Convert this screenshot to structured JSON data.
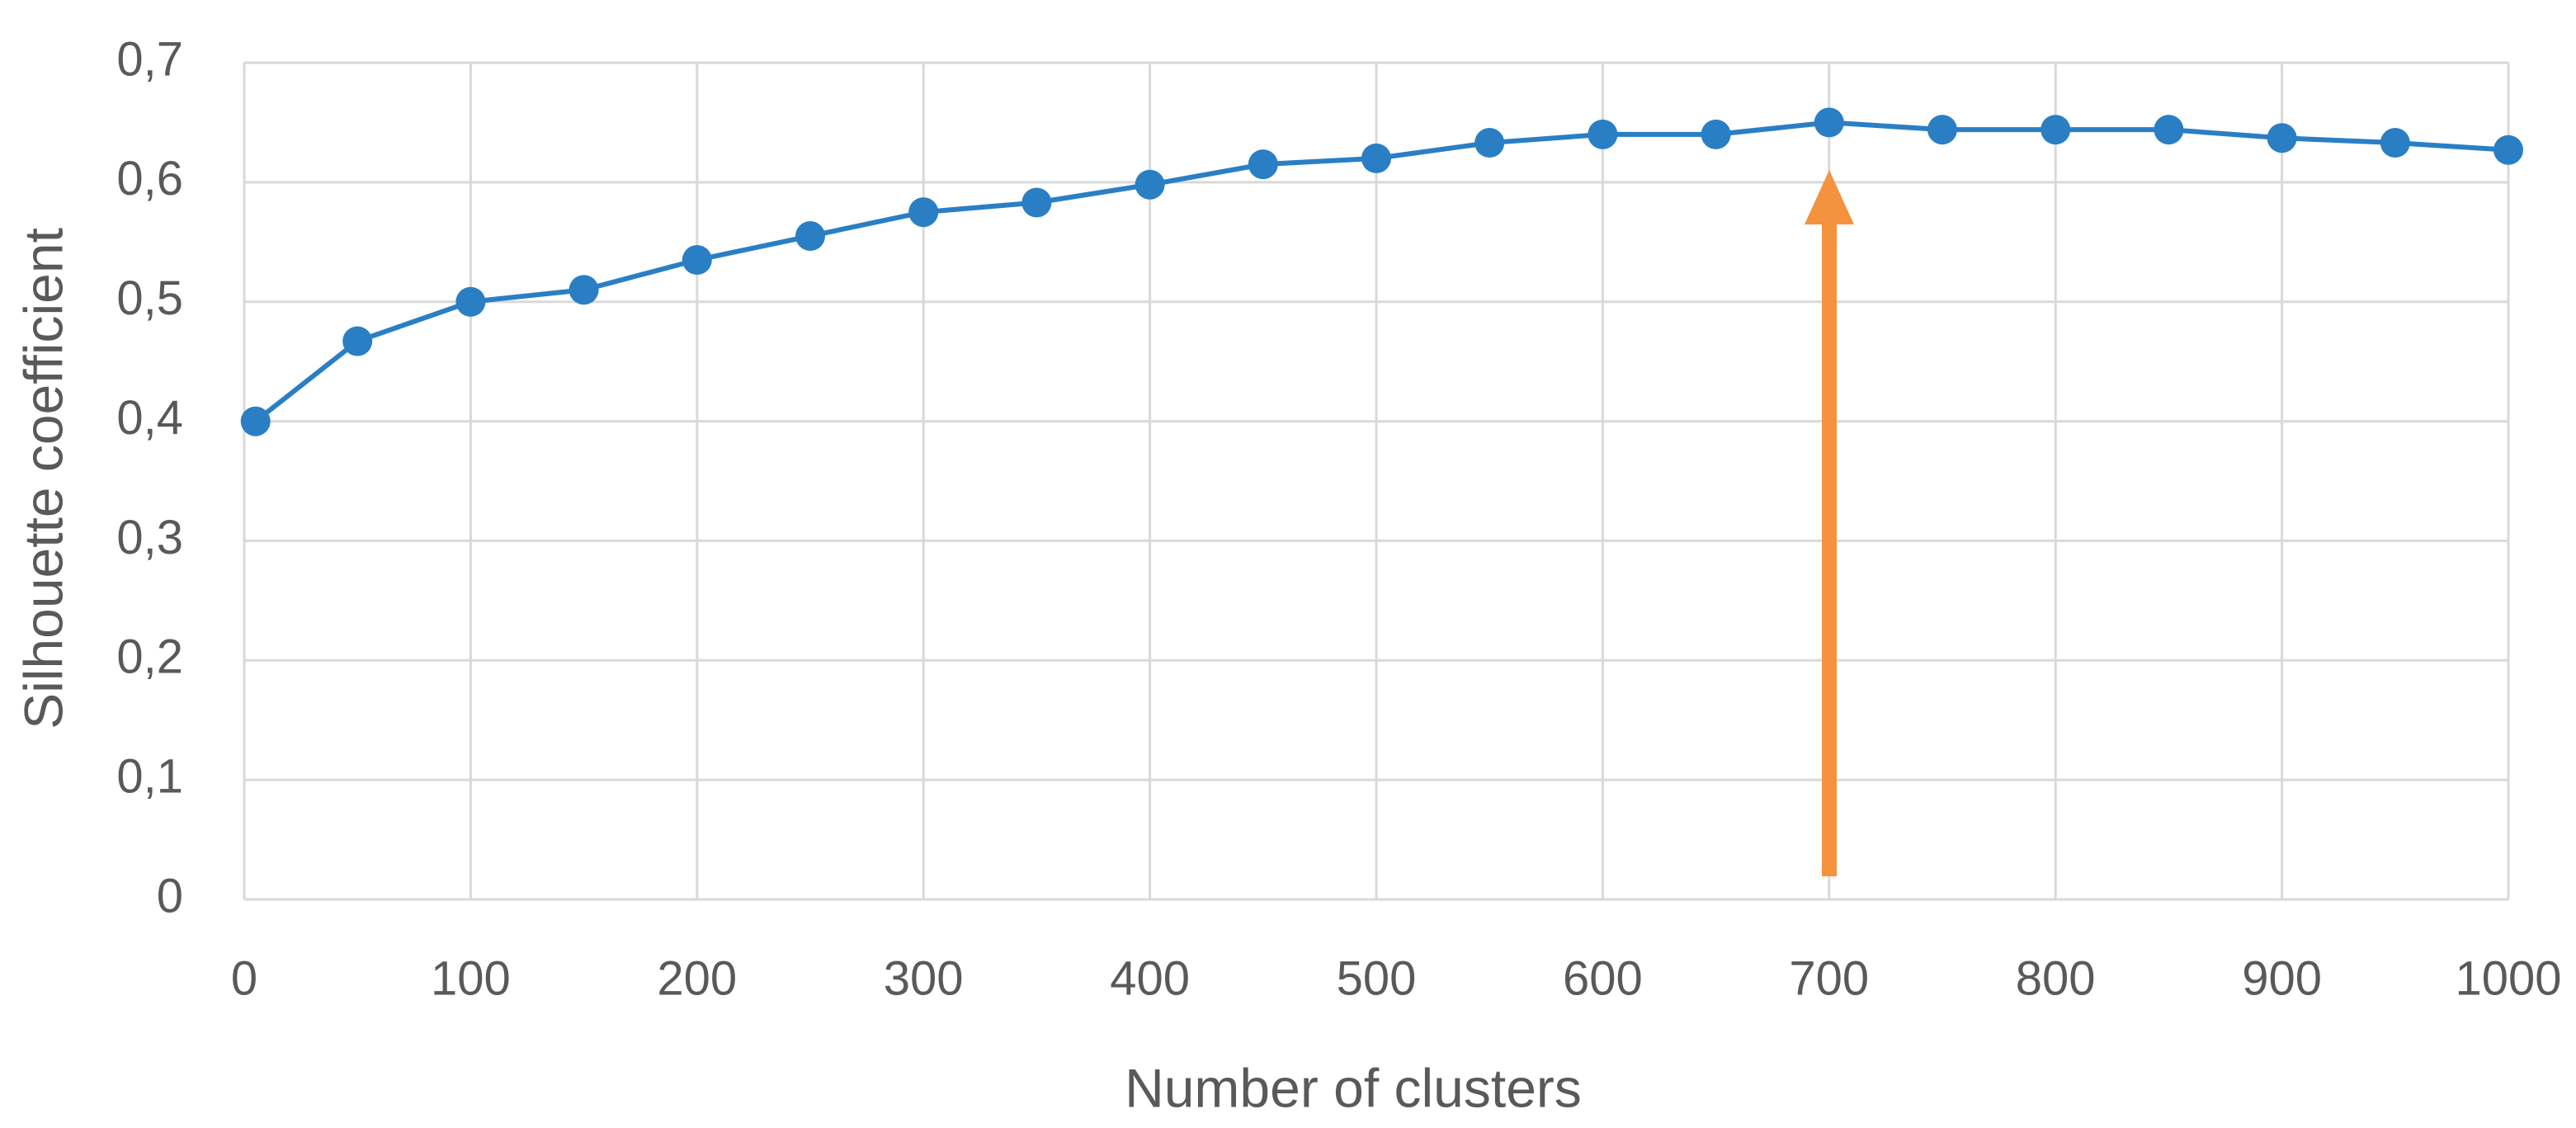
{
  "chart_data": {
    "type": "line",
    "x_label": "Number of clusters",
    "y_label": "Silhouette coefficient",
    "x": [
      5,
      50,
      100,
      150,
      200,
      250,
      300,
      350,
      400,
      450,
      500,
      550,
      600,
      650,
      700,
      750,
      800,
      850,
      900,
      950,
      1000
    ],
    "series": [
      {
        "name": "Silhouette coefficient",
        "color": "#2a7fc4",
        "values": [
          0.4,
          0.467,
          0.5,
          0.51,
          0.535,
          0.555,
          0.575,
          0.583,
          0.598,
          0.615,
          0.62,
          0.633,
          0.64,
          0.64,
          0.65,
          0.644,
          0.644,
          0.644,
          0.637,
          0.633,
          0.627
        ]
      }
    ],
    "xlim": [
      0,
      1000
    ],
    "xticks": [
      0,
      100,
      200,
      300,
      400,
      500,
      600,
      700,
      800,
      900,
      1000
    ],
    "ylim": [
      0,
      0.7
    ],
    "yticks": [
      0,
      {
        "value": 0.1,
        "label": "0,1"
      },
      {
        "value": 0.2,
        "label": "0,2"
      },
      {
        "value": 0.3,
        "label": "0,3"
      },
      {
        "value": 0.4,
        "label": "0,4"
      },
      {
        "value": 0.5,
        "label": "0,5"
      },
      {
        "value": 0.6,
        "label": "0,6"
      },
      {
        "value": 0.7,
        "label": "0,7"
      }
    ],
    "grid": true
  }
}
